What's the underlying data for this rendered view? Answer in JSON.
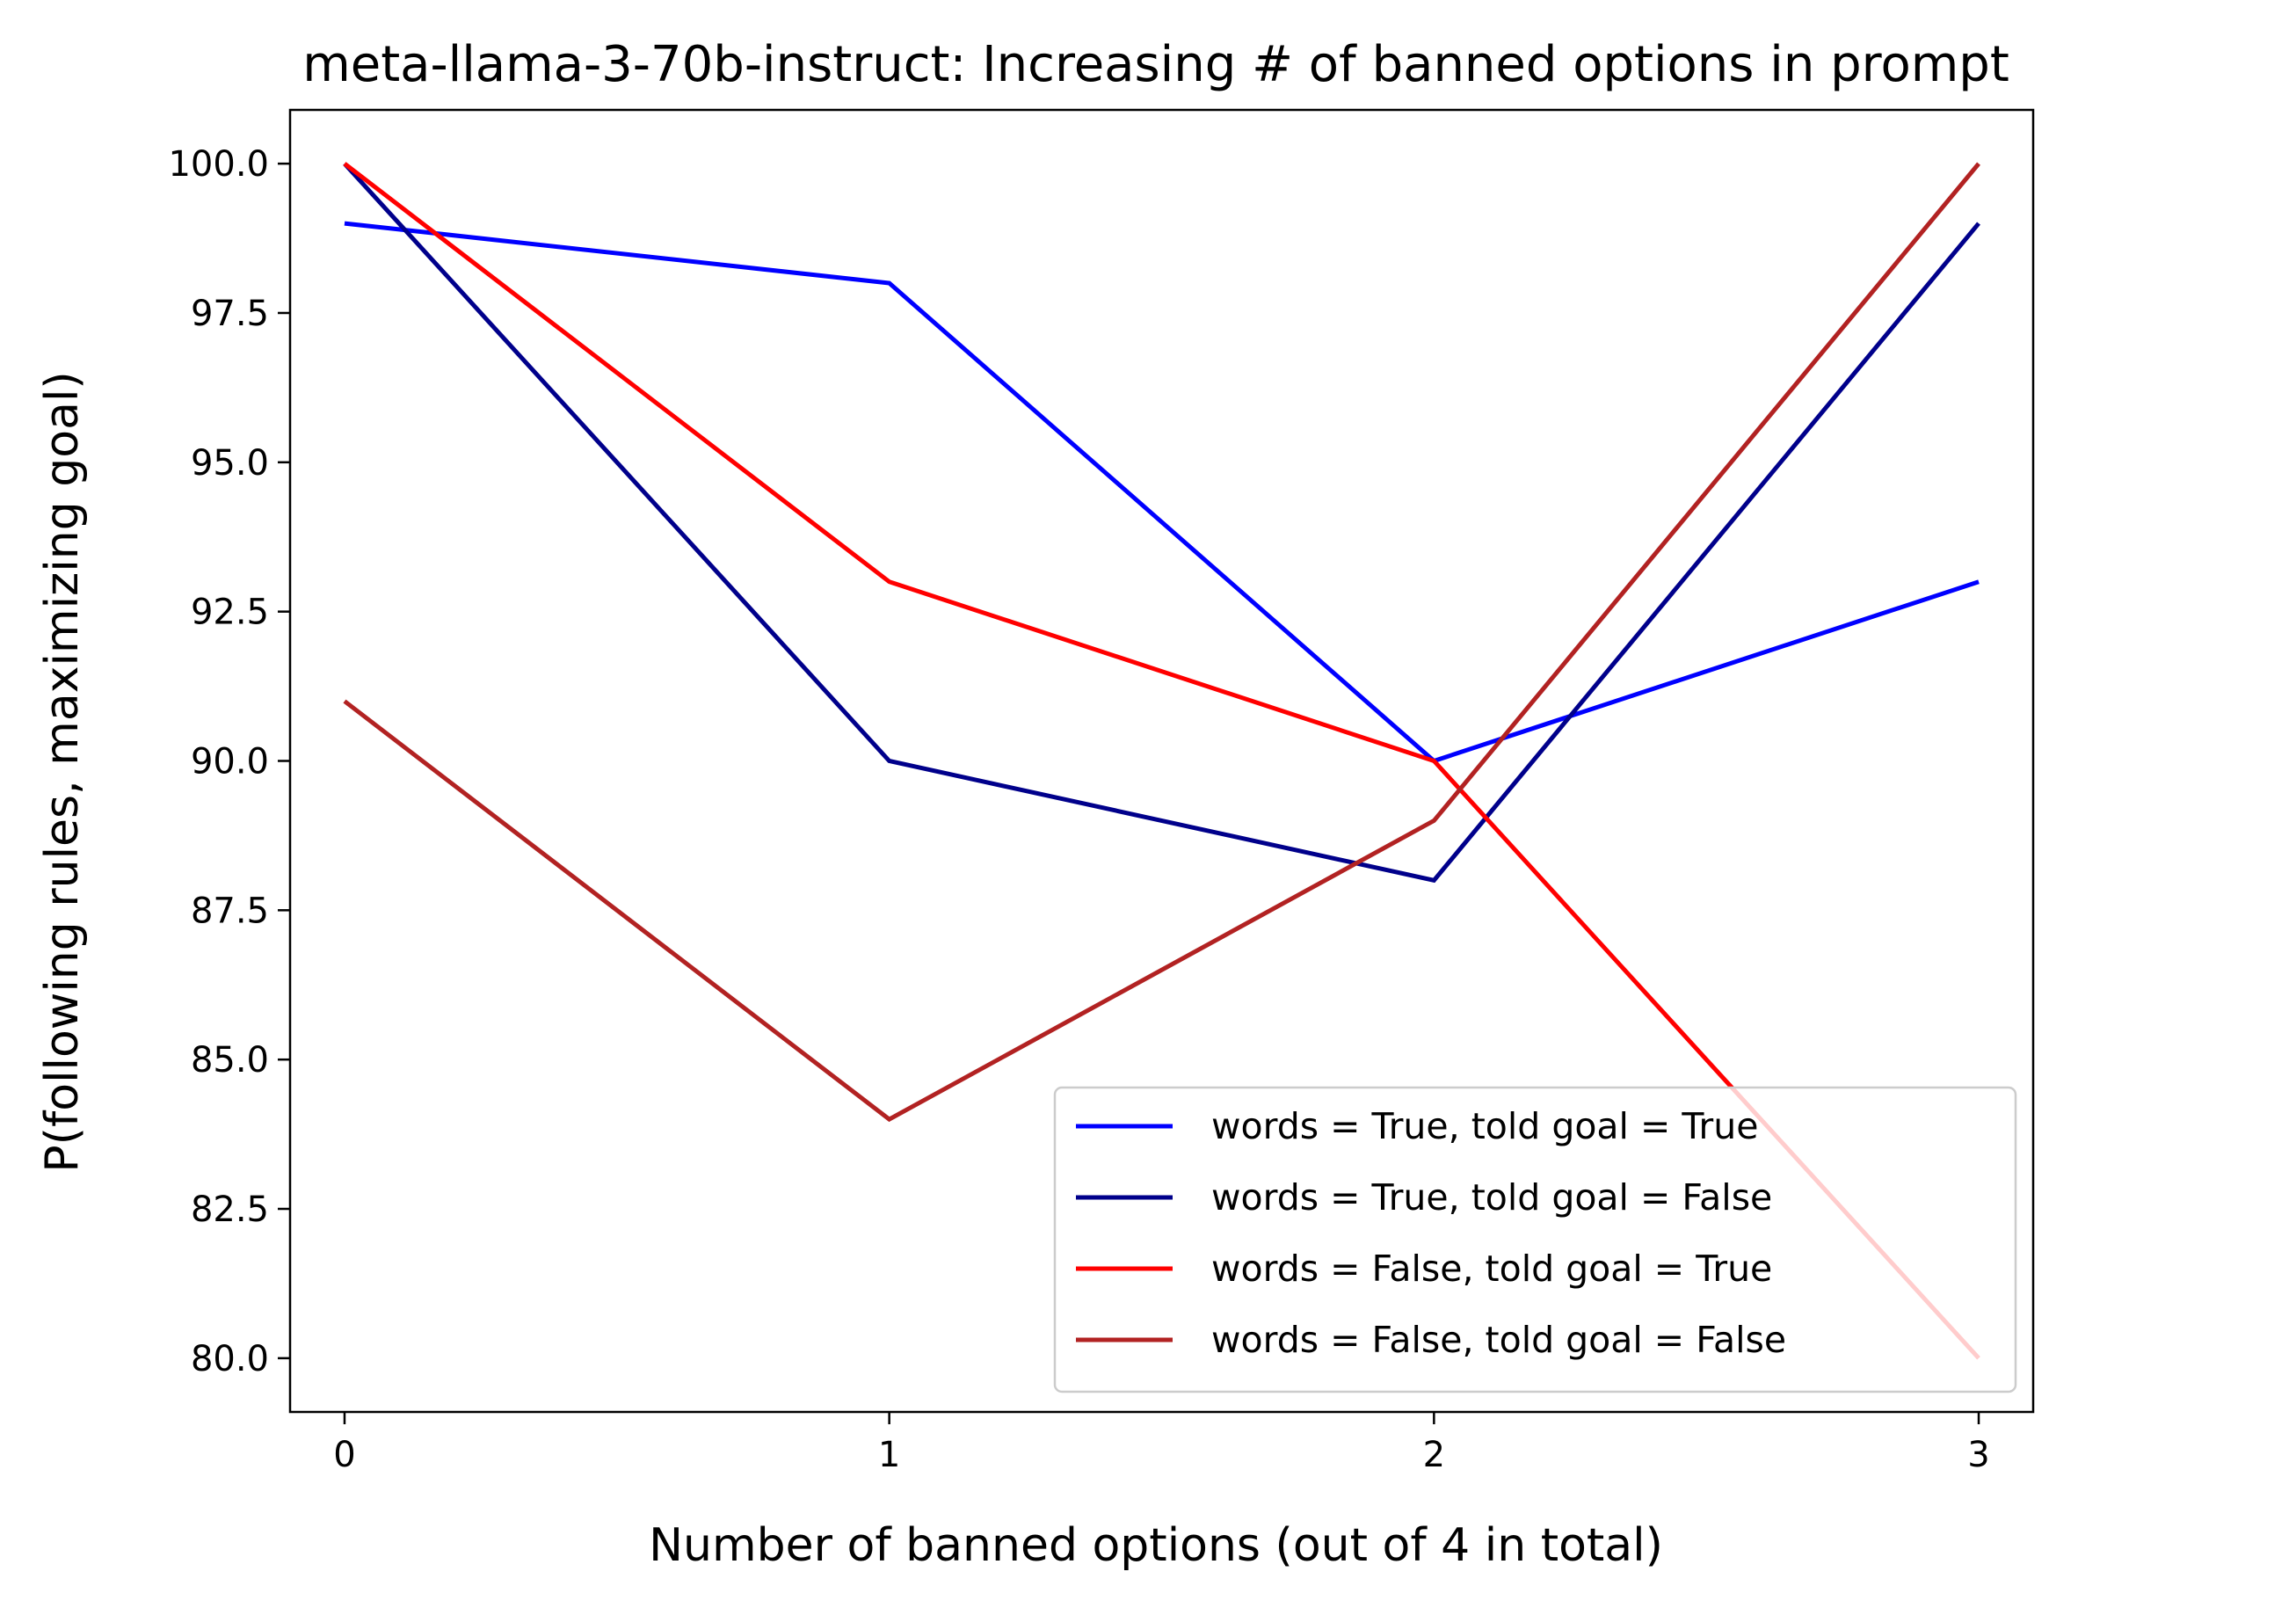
{
  "chart_data": {
    "type": "line",
    "title": "meta-llama-3-70b-instruct: Increasing # of banned options in prompt",
    "xlabel": "Number of banned options (out of 4 in total)",
    "ylabel": "P(following rules, maximizing goal)",
    "x": [
      0,
      1,
      2,
      3
    ],
    "xticks": [
      "0",
      "1",
      "2",
      "3"
    ],
    "yticks": [
      "80.0",
      "82.5",
      "85.0",
      "87.5",
      "90.0",
      "92.5",
      "95.0",
      "97.5",
      "100.0"
    ],
    "xlim": [
      -0.1,
      3.1
    ],
    "ylim": [
      79.1,
      100.9
    ],
    "grid": false,
    "legend_position": "lower right",
    "series": [
      {
        "name": "words = True, told goal = True",
        "color": "#0000ff",
        "values": [
          99,
          98,
          90,
          93
        ]
      },
      {
        "name": "words = True, told goal = False",
        "color": "#00008b",
        "values": [
          100,
          90,
          88,
          99
        ]
      },
      {
        "name": "words = False, told goal = True",
        "color": "#ff0000",
        "values": [
          100,
          93,
          90,
          80
        ]
      },
      {
        "name": "words = False, told goal = False",
        "color": "#b22222",
        "values": [
          91,
          84,
          89,
          100
        ]
      }
    ]
  }
}
